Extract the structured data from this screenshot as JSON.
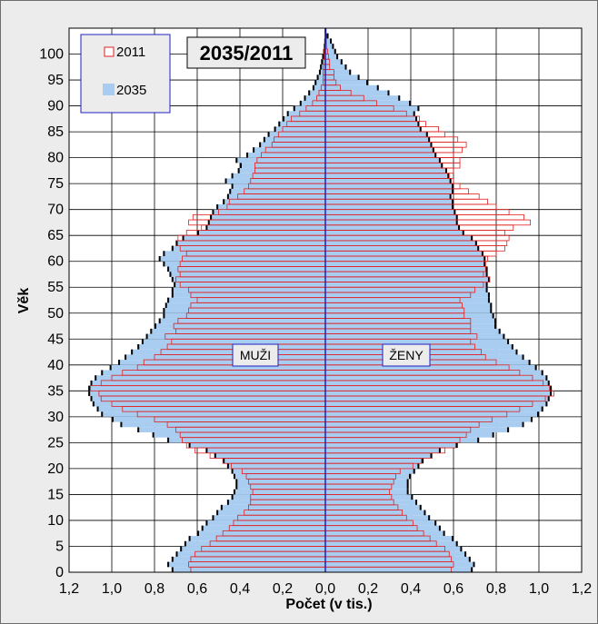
{
  "chart_data": {
    "type": "bar",
    "orientation": "horizontal",
    "subtype": "population-pyramid",
    "title": "2035/2011",
    "xlabel": "Počet (v tis.)",
    "ylabel": "Věk",
    "xlim": [
      -1.2,
      1.2
    ],
    "ylim": [
      0,
      105
    ],
    "x_ticks": [
      "1,2",
      "1,0",
      "0,8",
      "0,6",
      "0,4",
      "0,2",
      "0,0",
      "0,2",
      "0,4",
      "0,6",
      "0,8",
      "1,0",
      "1,2"
    ],
    "y_ticks": [
      "0",
      "5",
      "10",
      "15",
      "20",
      "25",
      "30",
      "35",
      "40",
      "45",
      "50",
      "55",
      "60",
      "65",
      "70",
      "75",
      "80",
      "85",
      "90",
      "95",
      "100"
    ],
    "grid": true,
    "side_labels": {
      "left": "MUŽI",
      "right": "ŽENY"
    },
    "legend": {
      "position": "top-left",
      "items": [
        "2011",
        "2035"
      ]
    },
    "colors": {
      "s2011": "#e02020",
      "s2035": "#a9cdf0",
      "center_line": "#2020c0",
      "s2035_edge": "#000000",
      "background": "#ececec",
      "plot_background": "#ffffff"
    },
    "ages": [
      0,
      1,
      2,
      3,
      4,
      5,
      6,
      7,
      8,
      9,
      10,
      11,
      12,
      13,
      14,
      15,
      16,
      17,
      18,
      19,
      20,
      21,
      22,
      23,
      24,
      25,
      26,
      27,
      28,
      29,
      30,
      31,
      32,
      33,
      34,
      35,
      36,
      37,
      38,
      39,
      40,
      41,
      42,
      43,
      44,
      45,
      46,
      47,
      48,
      49,
      50,
      51,
      52,
      53,
      54,
      55,
      56,
      57,
      58,
      59,
      60,
      61,
      62,
      63,
      64,
      65,
      66,
      67,
      68,
      69,
      70,
      71,
      72,
      73,
      74,
      75,
      76,
      77,
      78,
      79,
      80,
      81,
      82,
      83,
      84,
      85,
      86,
      87,
      88,
      89,
      90,
      91,
      92,
      93,
      94,
      95,
      96,
      97,
      98,
      99,
      100,
      101,
      102,
      103,
      104
    ],
    "series": [
      {
        "name": "2011",
        "male": [
          0.63,
          0.64,
          0.63,
          0.61,
          0.58,
          0.54,
          0.51,
          0.48,
          0.45,
          0.43,
          0.41,
          0.38,
          0.36,
          0.35,
          0.35,
          0.34,
          0.35,
          0.36,
          0.37,
          0.39,
          0.44,
          0.48,
          0.54,
          0.61,
          0.65,
          0.67,
          0.68,
          0.7,
          0.74,
          0.8,
          0.88,
          0.95,
          1.0,
          1.05,
          1.06,
          1.1,
          1.05,
          1.0,
          0.95,
          0.88,
          0.85,
          0.8,
          0.77,
          0.74,
          0.72,
          0.75,
          0.7,
          0.71,
          0.69,
          0.65,
          0.64,
          0.63,
          0.6,
          0.63,
          0.64,
          0.68,
          0.7,
          0.68,
          0.69,
          0.68,
          0.67,
          0.65,
          0.68,
          0.7,
          0.69,
          0.65,
          0.58,
          0.64,
          0.62,
          0.5,
          0.46,
          0.45,
          0.41,
          0.38,
          0.36,
          0.35,
          0.34,
          0.33,
          0.33,
          0.32,
          0.3,
          0.28,
          0.25,
          0.24,
          0.22,
          0.2,
          0.18,
          0.16,
          0.12,
          0.09,
          0.06,
          0.04,
          0.03,
          0.02,
          0.01,
          0.01,
          0.01,
          0.01,
          0.01,
          0.005,
          0.005,
          0.0,
          0.0,
          0.0,
          0.0
        ],
        "female": [
          0.59,
          0.6,
          0.59,
          0.58,
          0.56,
          0.52,
          0.49,
          0.46,
          0.43,
          0.41,
          0.38,
          0.36,
          0.34,
          0.32,
          0.31,
          0.3,
          0.31,
          0.32,
          0.33,
          0.35,
          0.41,
          0.45,
          0.5,
          0.56,
          0.61,
          0.63,
          0.66,
          0.68,
          0.72,
          0.78,
          0.85,
          0.91,
          0.97,
          1.03,
          1.07,
          1.05,
          1.02,
          0.97,
          0.91,
          0.86,
          0.8,
          0.75,
          0.73,
          0.7,
          0.68,
          0.71,
          0.68,
          0.68,
          0.68,
          0.65,
          0.65,
          0.64,
          0.63,
          0.68,
          0.7,
          0.74,
          0.77,
          0.74,
          0.75,
          0.75,
          0.76,
          0.8,
          0.84,
          0.85,
          0.86,
          0.84,
          0.88,
          0.96,
          0.93,
          0.86,
          0.8,
          0.76,
          0.72,
          0.67,
          0.63,
          0.6,
          0.58,
          0.6,
          0.63,
          0.63,
          0.6,
          0.64,
          0.66,
          0.62,
          0.56,
          0.53,
          0.47,
          0.44,
          0.38,
          0.32,
          0.24,
          0.18,
          0.12,
          0.07,
          0.05,
          0.04,
          0.04,
          0.02,
          0.02,
          0.015,
          0.01,
          0.005,
          0.005,
          0.0,
          0.0
        ]
      },
      {
        "name": "2035",
        "male": [
          0.72,
          0.74,
          0.72,
          0.7,
          0.68,
          0.66,
          0.64,
          0.6,
          0.58,
          0.56,
          0.53,
          0.51,
          0.49,
          0.46,
          0.44,
          0.43,
          0.42,
          0.42,
          0.43,
          0.44,
          0.46,
          0.48,
          0.52,
          0.56,
          0.64,
          0.74,
          0.81,
          0.88,
          0.96,
          1.0,
          1.05,
          1.07,
          1.09,
          1.1,
          1.11,
          1.11,
          1.1,
          1.08,
          1.05,
          1.01,
          0.97,
          0.94,
          0.91,
          0.88,
          0.86,
          0.84,
          0.82,
          0.8,
          0.78,
          0.76,
          0.76,
          0.75,
          0.74,
          0.72,
          0.72,
          0.71,
          0.72,
          0.73,
          0.74,
          0.76,
          0.78,
          0.76,
          0.72,
          0.7,
          0.67,
          0.6,
          0.56,
          0.55,
          0.54,
          0.53,
          0.51,
          0.48,
          0.46,
          0.45,
          0.44,
          0.47,
          0.44,
          0.41,
          0.4,
          0.42,
          0.37,
          0.34,
          0.31,
          0.29,
          0.27,
          0.24,
          0.22,
          0.2,
          0.18,
          0.15,
          0.12,
          0.1,
          0.08,
          0.06,
          0.05,
          0.04,
          0.03,
          0.025,
          0.02,
          0.015,
          0.01,
          0.007,
          0.005,
          0.003,
          0.0
        ],
        "female": [
          0.69,
          0.7,
          0.68,
          0.66,
          0.64,
          0.62,
          0.6,
          0.56,
          0.54,
          0.52,
          0.49,
          0.47,
          0.45,
          0.43,
          0.41,
          0.39,
          0.39,
          0.39,
          0.4,
          0.42,
          0.44,
          0.46,
          0.5,
          0.54,
          0.62,
          0.72,
          0.79,
          0.86,
          0.93,
          0.97,
          1.0,
          1.02,
          1.04,
          1.05,
          1.06,
          1.06,
          1.05,
          1.04,
          1.02,
          0.99,
          0.96,
          0.93,
          0.9,
          0.88,
          0.86,
          0.84,
          0.82,
          0.8,
          0.8,
          0.79,
          0.78,
          0.78,
          0.77,
          0.77,
          0.76,
          0.76,
          0.77,
          0.76,
          0.76,
          0.75,
          0.75,
          0.74,
          0.72,
          0.71,
          0.69,
          0.65,
          0.63,
          0.62,
          0.62,
          0.61,
          0.6,
          0.6,
          0.59,
          0.6,
          0.6,
          0.59,
          0.58,
          0.57,
          0.55,
          0.54,
          0.52,
          0.51,
          0.5,
          0.49,
          0.48,
          0.45,
          0.44,
          0.43,
          0.42,
          0.44,
          0.4,
          0.35,
          0.3,
          0.25,
          0.2,
          0.16,
          0.12,
          0.1,
          0.08,
          0.06,
          0.05,
          0.04,
          0.03,
          0.015,
          0.005
        ]
      }
    ]
  }
}
